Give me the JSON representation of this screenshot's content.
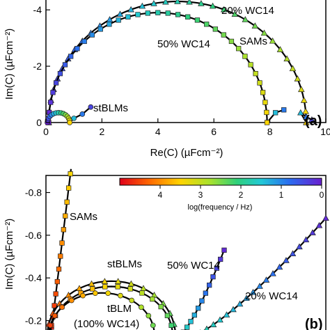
{
  "chart_data": [
    {
      "panel": "a",
      "type": "scatter",
      "panel_label": "(a)",
      "xlabel": "Re(C)  (µFcm⁻²)",
      "ylabel": "Im(C)  (µFcm⁻²)",
      "xlim": [
        0,
        10
      ],
      "ylim": [
        0,
        -4.4
      ],
      "x_ticks": [
        0,
        2,
        4,
        6,
        8,
        10
      ],
      "y_ticks": [
        0,
        -2,
        -4
      ],
      "x_tick_labels": [
        "0",
        "2",
        "4",
        "6",
        "8",
        "10"
      ],
      "y_tick_labels": [
        "0",
        "-2",
        "-4"
      ],
      "annotations": [
        "20% WC14",
        "50% WC14",
        "SAMs",
        "stBLMs"
      ],
      "series": [
        {
          "marker": "triangle",
          "x_range": [
            0.1,
            9.3
          ],
          "peak_y": -4.3,
          "tail": [
            [
              9.1,
              -0.35
            ],
            [
              9.3,
              -0.2
            ],
            [
              9.5,
              -0.1
            ]
          ]
        },
        {
          "marker": "square",
          "x_range": [
            0.1,
            7.9
          ],
          "peak_y": -3.9,
          "tail": [
            [
              8.2,
              -0.35
            ],
            [
              8.5,
              -0.45
            ]
          ]
        },
        {
          "marker": "circle",
          "x_range": [
            0.05,
            0.85
          ],
          "peak_y": -0.35,
          "tail": [
            [
              1.0,
              -0.15
            ],
            [
              1.3,
              -0.3
            ],
            [
              1.6,
              -0.55
            ]
          ]
        }
      ]
    },
    {
      "panel": "b",
      "type": "scatter",
      "panel_label": "(b)",
      "ylabel": "Im(C)  (µFcm⁻²)",
      "ylim": [
        -0.13,
        -0.88
      ],
      "y_ticks": [
        -0.2,
        -0.4,
        -0.6,
        -0.8
      ],
      "y_tick_labels": [
        "-0.2",
        "-0.4",
        "-0.6",
        "-0.8"
      ],
      "colorbar": {
        "label": "log(frequency / Hz)",
        "ticks": [
          "4",
          "3",
          "2",
          "1",
          "0"
        ],
        "range": [
          5,
          0
        ]
      },
      "annotations": [
        "SAMs",
        "stBLMs",
        "50% WC14",
        "20% WC14",
        "tBLM",
        "(100% WC14)"
      ]
    }
  ]
}
